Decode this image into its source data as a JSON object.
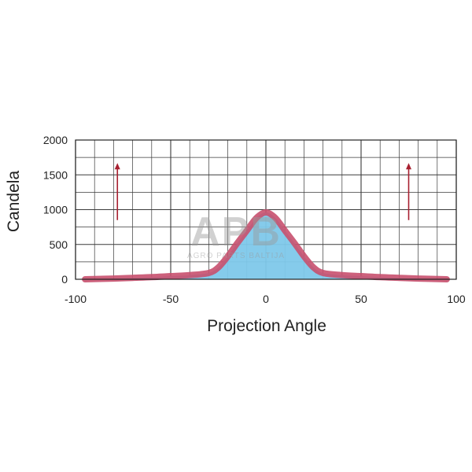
{
  "chart_data": {
    "type": "area",
    "xlabel": "Projection Angle",
    "ylabel": "Candela",
    "xlim": [
      -100,
      100
    ],
    "ylim": [
      0,
      2000
    ],
    "x_ticks": [
      "-100",
      "-50",
      "0",
      "50",
      "100"
    ],
    "y_ticks": [
      "2000",
      "1500",
      "1000",
      "500",
      "0"
    ],
    "grid": true,
    "series": [
      {
        "x": [
          -95,
          -80,
          -70,
          -60,
          -50,
          -40,
          -30,
          -25,
          -20,
          -15,
          -10,
          -5,
          0,
          5,
          10,
          15,
          20,
          25,
          30,
          40,
          50,
          60,
          70,
          80,
          95
        ],
        "y": [
          0,
          10,
          20,
          30,
          45,
          60,
          90,
          170,
          330,
          520,
          700,
          880,
          960,
          880,
          700,
          520,
          330,
          170,
          90,
          60,
          45,
          30,
          20,
          10,
          0
        ]
      }
    ],
    "annotations": [
      {
        "type": "arrow",
        "x": -78,
        "y_from": 850,
        "y_to": 1670
      },
      {
        "type": "arrow",
        "x": 75,
        "y_from": 850,
        "y_to": 1670
      }
    ],
    "colors": {
      "fill": "#7ec8ea",
      "band": "#c8506e",
      "arrow": "#a82030",
      "grid": "#3a3a3a"
    }
  },
  "watermark": {
    "logo_text": "APB",
    "subtitle": "AGRO PARTS BALTIJA"
  }
}
